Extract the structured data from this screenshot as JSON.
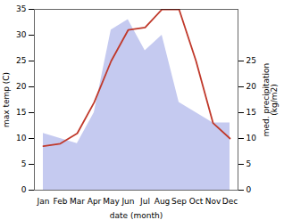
{
  "chart_data": {
    "type": "line",
    "categories": [
      "Jan",
      "Feb",
      "Mar",
      "Apr",
      "May",
      "Jun",
      "Jul",
      "Aug",
      "Sep",
      "Oct",
      "Nov",
      "Dec"
    ],
    "series": [
      {
        "type": "area",
        "color": "#c5caf0",
        "axis": "y2",
        "values": [
          11,
          10,
          9,
          15,
          31,
          33,
          27,
          30,
          17,
          15,
          13,
          13
        ]
      },
      {
        "type": "line",
        "color": "#c0392b",
        "values": [
          8.5,
          9.0,
          11.0,
          17.0,
          25.0,
          31.0,
          31.5,
          35.0,
          35.0,
          25.0,
          13.0,
          10.0
        ]
      }
    ],
    "xlabel": "date (month)",
    "ylabel": "max temp (C)",
    "y2label": "med. precipitation\n(kg/m2)",
    "ylim": [
      0,
      35
    ],
    "yticks": [
      0,
      5,
      10,
      15,
      20,
      25,
      30,
      35
    ],
    "y2lim": [
      0,
      35
    ],
    "y2ticks": [
      0,
      5,
      10,
      15,
      20,
      25
    ]
  }
}
